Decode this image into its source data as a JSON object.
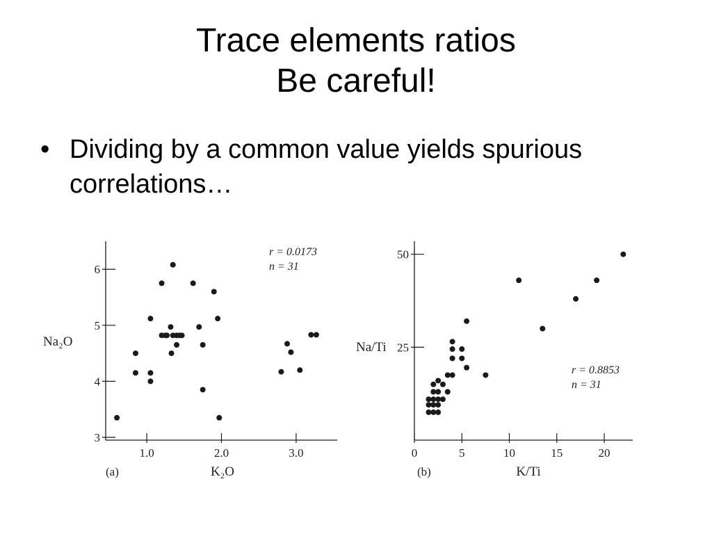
{
  "slide": {
    "title_lines": [
      "Trace elements ratios",
      "Be careful!"
    ],
    "bullets": [
      "Dividing by a common value yields spurious correlations…"
    ]
  },
  "colors": {
    "ink": "#1a1a1a",
    "background": "#ffffff"
  },
  "chart_data": [
    {
      "type": "scatter",
      "panel_label": "(a)",
      "xlabel": "K₂O",
      "ylabel": "Na₂O",
      "xlim": [
        0.45,
        3.55
      ],
      "ylim": [
        2.95,
        6.4
      ],
      "xticks": [
        1.0,
        2.0,
        3.0
      ],
      "xtick_labels": [
        "1.0",
        "2.0",
        "3.0"
      ],
      "yticks": [
        3,
        4,
        5,
        6
      ],
      "ytick_labels": [
        "3",
        "4",
        "5",
        "6"
      ],
      "stats": [
        "r = 0.0173",
        "n = 31"
      ],
      "x": [
        0.6,
        0.85,
        0.85,
        1.05,
        1.05,
        1.05,
        1.2,
        1.2,
        1.25,
        1.32,
        1.33,
        1.35,
        1.4,
        1.4,
        1.47,
        1.62,
        1.7,
        1.75,
        1.75,
        1.9,
        1.95,
        1.97,
        2.8,
        2.88,
        2.93,
        3.05,
        3.2,
        3.27,
        1.27,
        1.35,
        1.44
      ],
      "y": [
        3.35,
        4.5,
        4.15,
        5.12,
        4.15,
        4.0,
        5.75,
        4.82,
        4.82,
        4.97,
        4.5,
        6.08,
        4.65,
        4.82,
        4.82,
        5.75,
        4.97,
        4.65,
        3.85,
        5.6,
        5.12,
        3.35,
        4.17,
        4.67,
        4.52,
        4.2,
        4.83,
        4.83,
        4.82,
        4.82,
        4.82
      ]
    },
    {
      "type": "scatter",
      "panel_label": "(b)",
      "xlabel": "K/Ti",
      "ylabel": "Na/Ti",
      "xlim": [
        0,
        23
      ],
      "ylim": [
        0,
        52
      ],
      "xticks": [
        0,
        5,
        10,
        15,
        20
      ],
      "xtick_labels": [
        "0",
        "5",
        "10",
        "15",
        "20"
      ],
      "yticks": [
        25,
        50
      ],
      "ytick_labels": [
        "25",
        "50"
      ],
      "stats": [
        "r = 0.8853",
        "n = 31"
      ],
      "x": [
        1.5,
        1.5,
        1.5,
        2.0,
        2.0,
        2.0,
        2.0,
        2.0,
        2.5,
        2.5,
        2.5,
        2.5,
        3.0,
        3.5,
        3.5,
        4.0,
        4.0,
        4.0,
        4.0,
        5.0,
        5.0,
        5.5,
        5.5,
        7.5,
        11.0,
        13.5,
        17.0,
        19.2,
        22.0,
        3.0,
        2.5
      ],
      "y": [
        7.5,
        9.5,
        11.0,
        7.5,
        9.5,
        11.0,
        13.0,
        15.0,
        7.5,
        9.5,
        11.0,
        13.0,
        15.0,
        17.5,
        13.0,
        17.5,
        22.0,
        24.5,
        26.5,
        22.0,
        24.5,
        19.5,
        32.0,
        17.5,
        43.0,
        30.0,
        38.0,
        43.0,
        50.0,
        11.0,
        16.0
      ]
    }
  ]
}
